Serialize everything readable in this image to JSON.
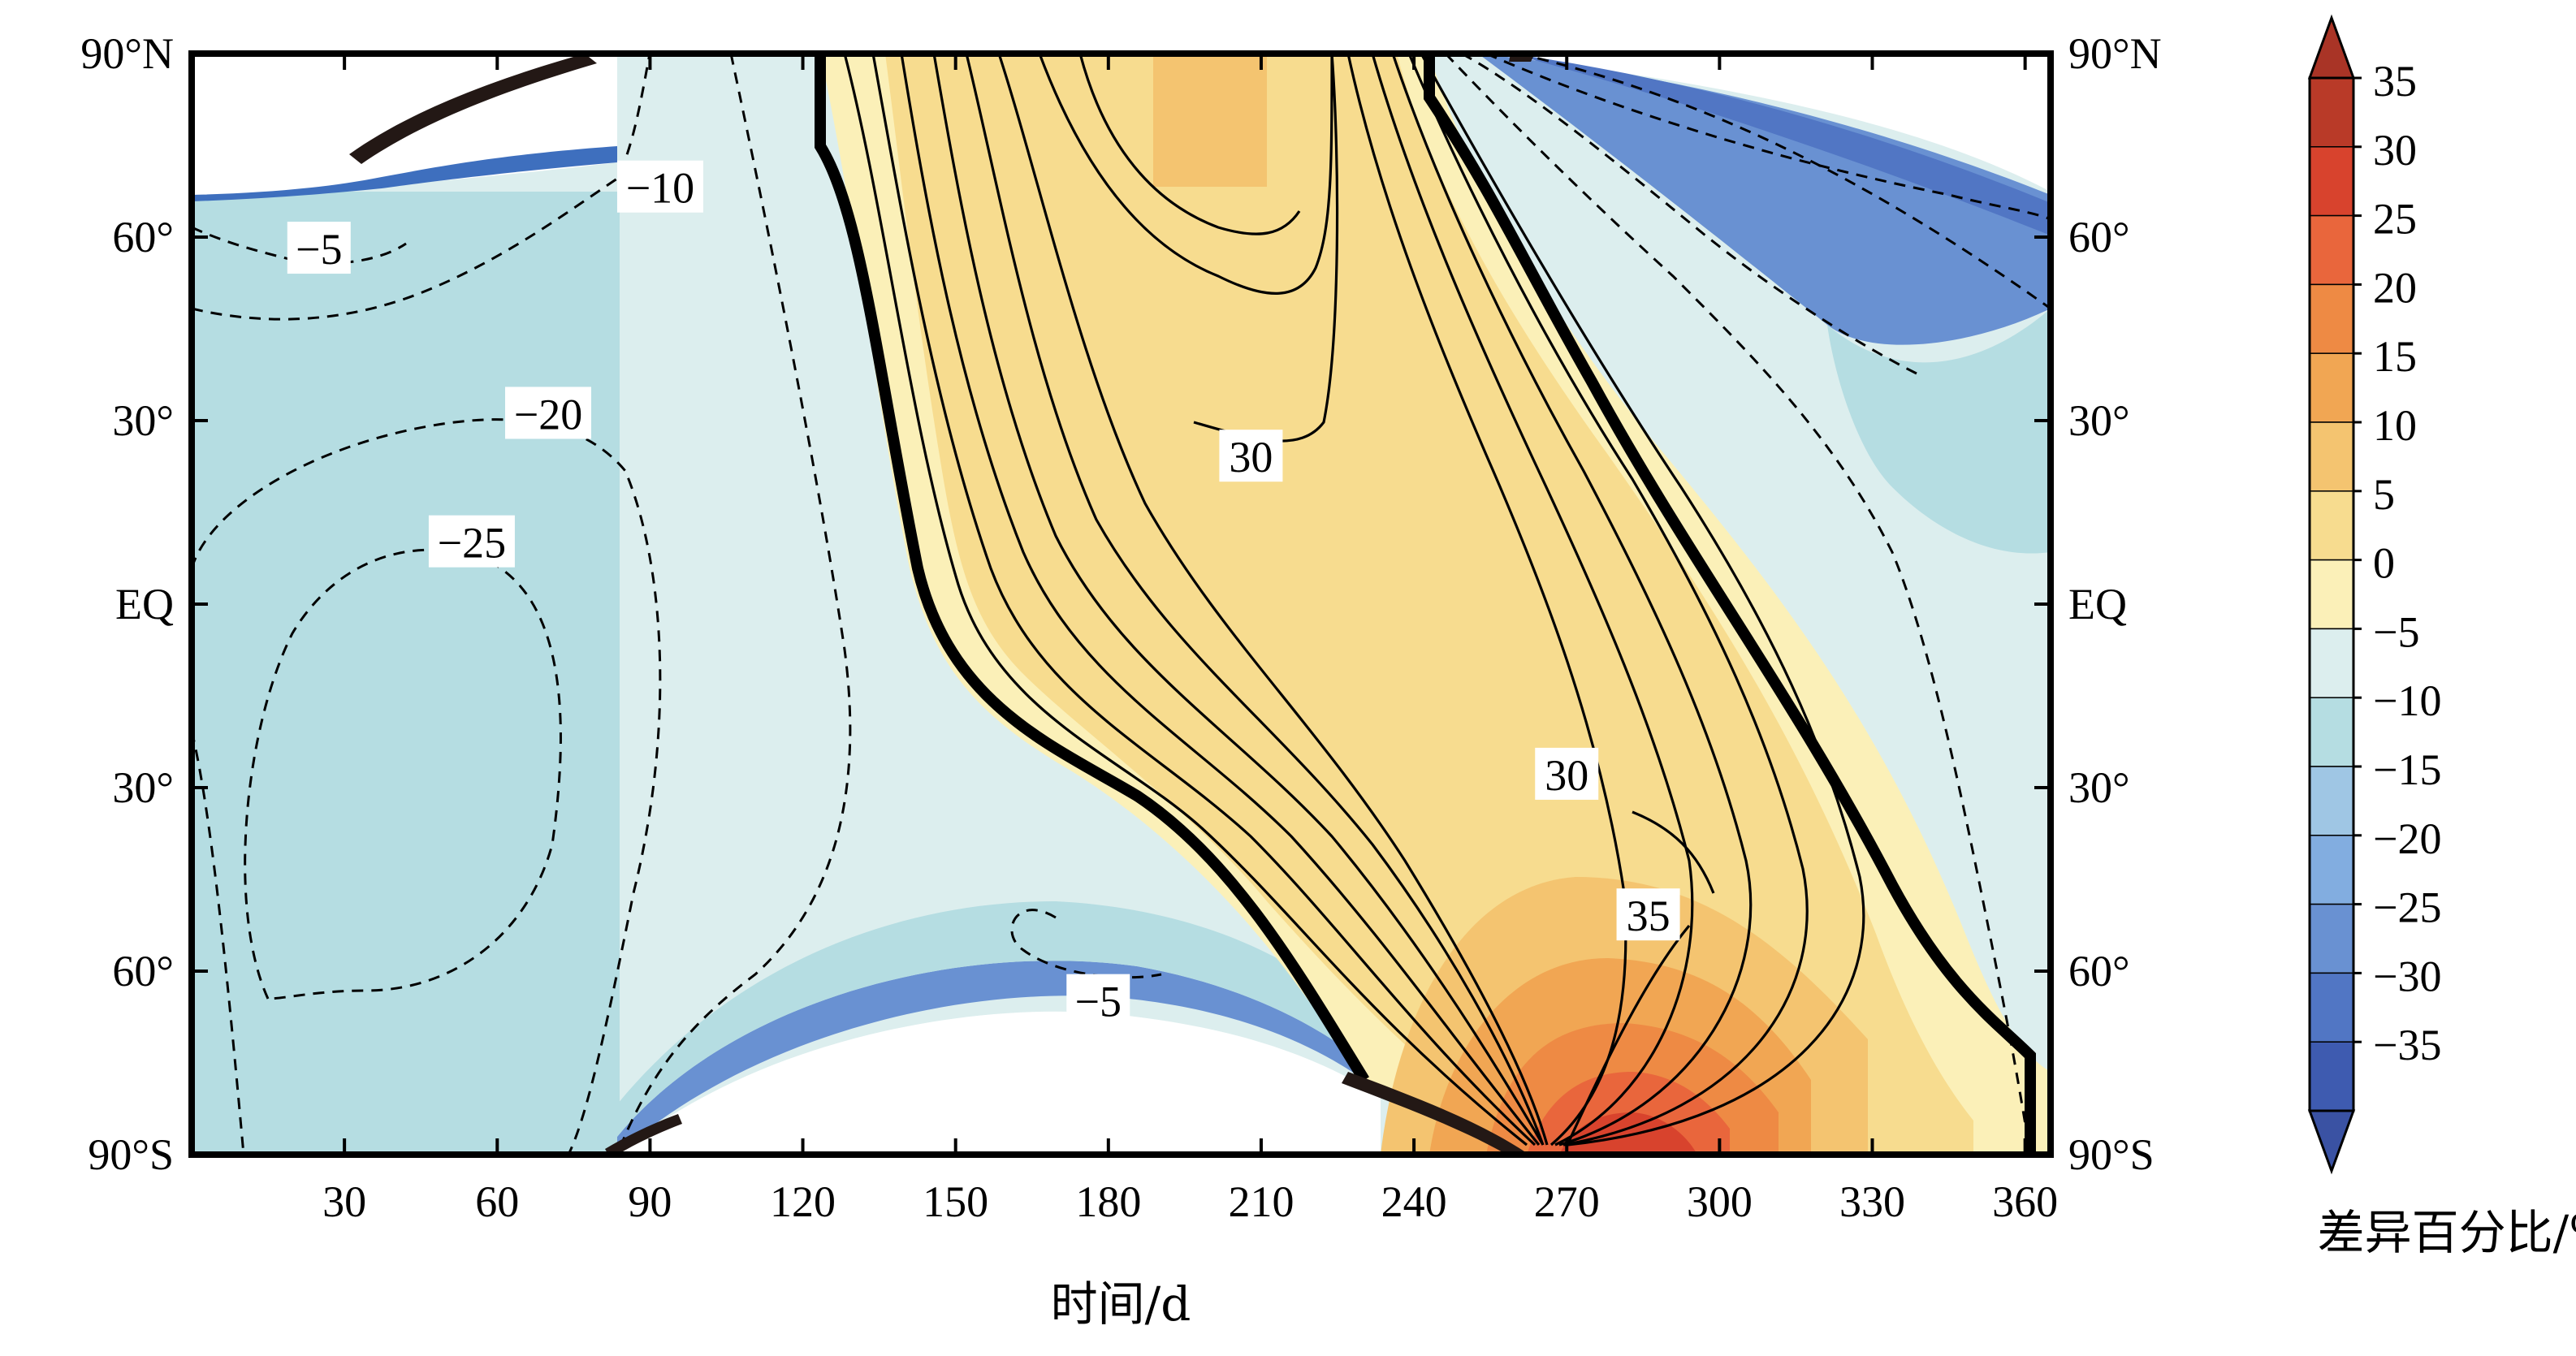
{
  "chart_data": {
    "type": "heatmap",
    "xlabel": "时间/d",
    "colorbar_label": "差异百分比/%",
    "x_ticks": [
      30,
      60,
      90,
      120,
      150,
      180,
      210,
      240,
      270,
      300,
      330,
      360
    ],
    "xlim": [
      0,
      365
    ],
    "y_ticks_left": [
      "90°N",
      "60°",
      "30°",
      "EQ",
      "30°",
      "60°",
      "90°S"
    ],
    "y_ticks_right": [
      "90°N",
      "60°",
      "30°",
      "EQ",
      "30°",
      "60°",
      "90°S"
    ],
    "ylim": [
      -90,
      90
    ],
    "colorbar": {
      "levels": [
        35,
        30,
        25,
        20,
        15,
        10,
        5,
        0,
        -5,
        -10,
        -15,
        -20,
        -25,
        -30,
        -35
      ],
      "labels": [
        "35",
        "30",
        "25",
        "20",
        "15",
        "10",
        "5",
        "0",
        "−5",
        "−10",
        "−15",
        "−20",
        "−25",
        "−30",
        "−35"
      ],
      "colors": [
        "#b93a28",
        "#d8432d",
        "#e9663c",
        "#ee8a44",
        "#f1a653",
        "#f4c470",
        "#f7dc8f",
        "#fbf0b8",
        "#dceeee",
        "#b5dde2",
        "#9fc6e4",
        "#82ade0",
        "#6991d2",
        "#5176c4",
        "#3e5bb0"
      ],
      "top_arrow_color": "#a93426",
      "bottom_arrow_color": "#3a52a3"
    },
    "contour_labels": [
      {
        "text": "−5",
        "x": 25,
        "y": 58
      },
      {
        "text": "−10",
        "x": 92,
        "y": 68
      },
      {
        "text": "−20",
        "x": 70,
        "y": 31
      },
      {
        "text": "−25",
        "x": 55,
        "y": 10
      },
      {
        "text": "30",
        "x": 208,
        "y": 24
      },
      {
        "text": "30",
        "x": 270,
        "y": -28
      },
      {
        "text": "35",
        "x": 286,
        "y": -51
      },
      {
        "text": "−5",
        "x": 178,
        "y": -65
      }
    ]
  }
}
